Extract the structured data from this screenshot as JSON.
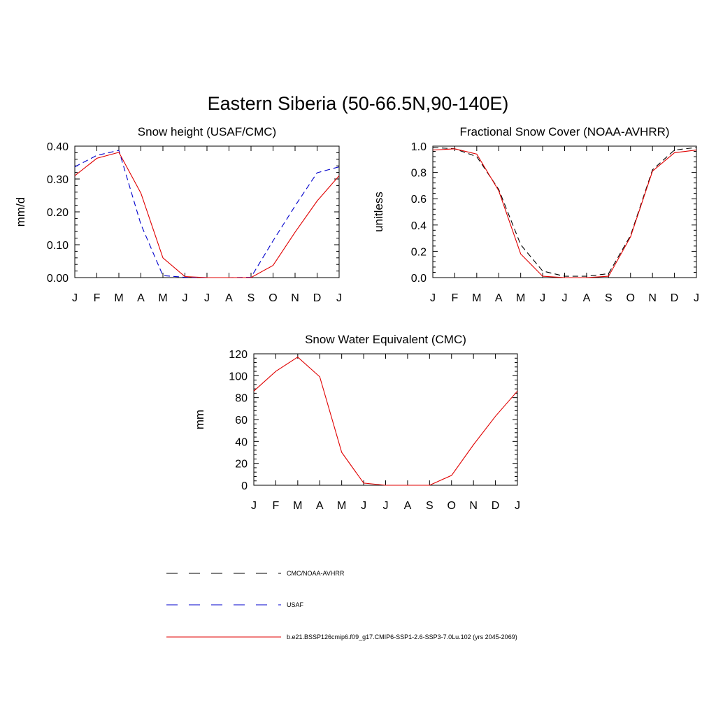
{
  "figure": {
    "title": "Eastern Siberia (50-66.5N,90-140E)"
  },
  "legend": [
    {
      "name": "CMC/NOAA-AVHRR",
      "color": "#000000",
      "dash": "dashed"
    },
    {
      "name": "USAF",
      "color": "#0000cc",
      "dash": "dashed"
    },
    {
      "name": "b.e21.BSSP126cmip6.f09_g17.CMIP6-SSP1-2.6-SSP3-7.0Lu.102 (yrs 2045-2069)",
      "color": "#e00000",
      "dash": "solid"
    }
  ],
  "chart_data": [
    {
      "id": "snow-height",
      "type": "line",
      "title": "Snow height (USAF/CMC)",
      "ylabel": "mm/d",
      "xlabel": "",
      "categories": [
        "J",
        "F",
        "M",
        "A",
        "M",
        "J",
        "J",
        "A",
        "S",
        "O",
        "N",
        "D",
        "J"
      ],
      "ylim": [
        0,
        0.4
      ],
      "yticks": [
        "0.00",
        "0.10",
        "0.20",
        "0.30",
        "0.40"
      ],
      "yticks_values": [
        0,
        0.1,
        0.2,
        0.3,
        0.4
      ],
      "series": [
        {
          "name": "CMC/NOAA-AVHRR",
          "color": "#000000",
          "dash": "dashed",
          "values": [
            0,
            0,
            0,
            0,
            0,
            0,
            0,
            0,
            0,
            0,
            0,
            0,
            0
          ]
        },
        {
          "name": "USAF",
          "color": "#0000cc",
          "dash": "dashed",
          "values": [
            0.337,
            0.372,
            0.387,
            0.162,
            0.006,
            0.001,
            0.0,
            0.0,
            0.001,
            0.112,
            0.218,
            0.319,
            0.337
          ]
        },
        {
          "name": "b.e21.BSSP126cmip6.f09_g17.CMIP6-SSP1-2.6-SSP3-7.0Lu.102 (yrs 2045-2069)",
          "color": "#e00000",
          "dash": "solid",
          "values": [
            0.31,
            0.363,
            0.381,
            0.257,
            0.06,
            0.003,
            0.0,
            0.0,
            0.0,
            0.037,
            0.138,
            0.233,
            0.31
          ]
        }
      ]
    },
    {
      "id": "snow-cover",
      "type": "line",
      "title": "Fractional Snow Cover (NOAA-AVHRR)",
      "ylabel": "unitless",
      "xlabel": "",
      "categories": [
        "J",
        "F",
        "M",
        "A",
        "M",
        "J",
        "J",
        "A",
        "S",
        "O",
        "N",
        "D",
        "J"
      ],
      "ylim": [
        0,
        1.0
      ],
      "yticks": [
        "0.0",
        "0.2",
        "0.4",
        "0.6",
        "0.8",
        "1.0"
      ],
      "yticks_values": [
        0,
        0.2,
        0.4,
        0.6,
        0.8,
        1.0
      ],
      "series": [
        {
          "name": "CMC/NOAA-AVHRR",
          "color": "#000000",
          "dash": "dashed",
          "values": [
            0.99,
            0.98,
            0.92,
            0.67,
            0.25,
            0.05,
            0.01,
            0.01,
            0.03,
            0.32,
            0.82,
            0.97,
            0.99
          ]
        },
        {
          "name": "b.e21.BSSP126cmip6.f09_g17.CMIP6-SSP1-2.6-SSP3-7.0Lu.102 (yrs 2045-2069)",
          "color": "#e00000",
          "dash": "solid",
          "values": [
            0.97,
            0.98,
            0.94,
            0.66,
            0.18,
            0.01,
            0.0,
            0.0,
            0.01,
            0.31,
            0.81,
            0.95,
            0.97
          ]
        }
      ]
    },
    {
      "id": "swe",
      "type": "line",
      "title": "Snow Water Equivalent (CMC)",
      "ylabel": "mm",
      "xlabel": "",
      "categories": [
        "J",
        "F",
        "M",
        "A",
        "M",
        "J",
        "J",
        "A",
        "S",
        "O",
        "N",
        "D",
        "J"
      ],
      "ylim": [
        0,
        120
      ],
      "yticks": [
        "0",
        "20",
        "40",
        "60",
        "80",
        "100",
        "120"
      ],
      "yticks_values": [
        0,
        20,
        40,
        60,
        80,
        100,
        120
      ],
      "series": [
        {
          "name": "CMC/NOAA-AVHRR",
          "color": "#000000",
          "dash": "dashed",
          "values": [
            0,
            0,
            0,
            0,
            0,
            0,
            0,
            0,
            0,
            0,
            0,
            0,
            0
          ]
        },
        {
          "name": "b.e21.BSSP126cmip6.f09_g17.CMIP6-SSP1-2.6-SSP3-7.0Lu.102 (yrs 2045-2069)",
          "color": "#e00000",
          "dash": "solid",
          "values": [
            86,
            104,
            117,
            99,
            30,
            2,
            0,
            0,
            0,
            9,
            37,
            63,
            86
          ]
        }
      ]
    }
  ]
}
